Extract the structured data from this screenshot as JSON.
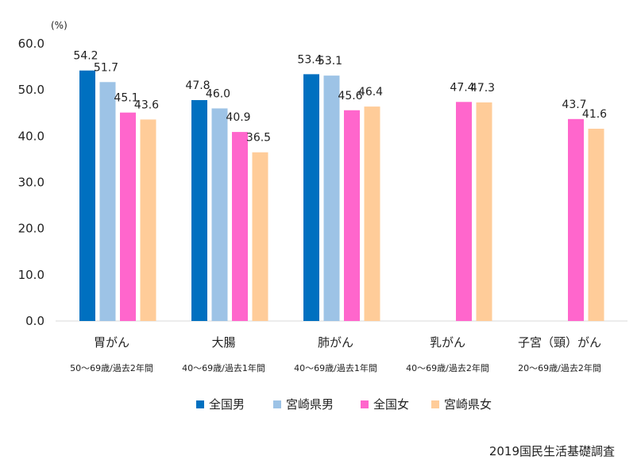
{
  "chart_data": {
    "type": "bar",
    "unit_label": "(%)",
    "ylim": [
      0,
      60
    ],
    "yticks": [
      "0.0",
      "10.0",
      "20.0",
      "30.0",
      "40.0",
      "50.0",
      "60.0"
    ],
    "grid": false,
    "legend_position": "bottom",
    "categories": [
      "胃がん",
      "大腸",
      "肺がん",
      "乳がん",
      "子宮（頸）がん"
    ],
    "subtitles": [
      "50～69歳/過去2年間",
      "40～69歳/過去1年間",
      "40～69歳/過去1年間",
      "40～69歳/過去2年間",
      "20～69歳/過去2年間"
    ],
    "series": [
      {
        "name": "全国男",
        "color": "#0070c0",
        "values": [
          54.2,
          47.8,
          53.4,
          null,
          null
        ],
        "labels": [
          "54.2",
          "47.8",
          "53.4",
          "",
          ""
        ]
      },
      {
        "name": "宮崎県男",
        "color": "#9dc3e6",
        "values": [
          51.7,
          46.0,
          53.1,
          null,
          null
        ],
        "labels": [
          "51.7",
          "46.0",
          "53.1",
          "",
          ""
        ]
      },
      {
        "name": "全国女",
        "color": "#ff66cc",
        "values": [
          45.1,
          40.9,
          45.6,
          47.4,
          43.7
        ],
        "labels": [
          "45.1",
          "40.9",
          "45.6",
          "47.4",
          "43.7"
        ]
      },
      {
        "name": "宮崎県女",
        "color": "#ffcc99",
        "values": [
          43.6,
          36.5,
          46.4,
          47.3,
          41.6
        ],
        "labels": [
          "43.6",
          "36.5",
          "46.4",
          "47.3",
          "41.6"
        ]
      }
    ],
    "source_note": "2019国民生活基礎調査"
  }
}
